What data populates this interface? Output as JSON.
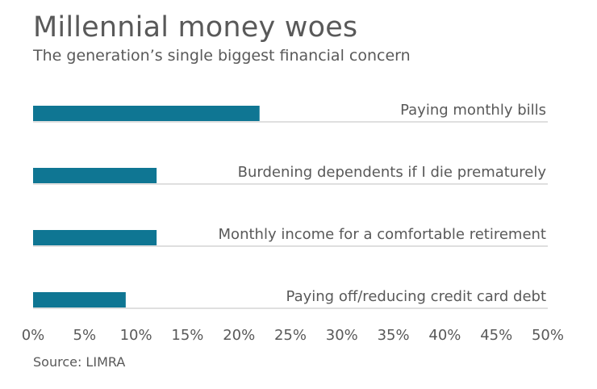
{
  "header": {
    "title": "Millennial money woes",
    "subtitle": "The generation’s single biggest financial concern"
  },
  "footer": {
    "source": "Source: LIMRA"
  },
  "colors": {
    "bar": "#0f7693",
    "baseline": "#cccccc",
    "text": "#595959"
  },
  "chart_data": {
    "type": "bar",
    "orientation": "horizontal",
    "categories": [
      "Paying monthly bills",
      "Burdening dependents if I die prematurely",
      "Monthly income for a comfortable retirement",
      "Paying off/reducing credit card debt"
    ],
    "values": [
      22,
      12,
      12,
      9
    ],
    "xlim": [
      0,
      50
    ],
    "xticks": [
      "0%",
      "5%",
      "10%",
      "15%",
      "20%",
      "25%",
      "30%",
      "35%",
      "40%",
      "45%",
      "50%"
    ],
    "xtick_values": [
      0,
      5,
      10,
      15,
      20,
      25,
      30,
      35,
      40,
      45,
      50
    ],
    "grid": false,
    "legend": "none",
    "title": "Millennial money woes",
    "subtitle": "The generation’s single biggest financial concern"
  }
}
